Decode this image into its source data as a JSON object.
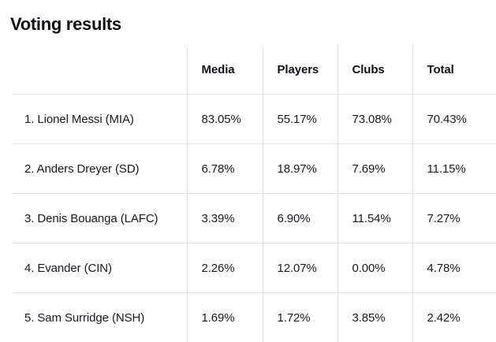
{
  "page_title": "Voting results",
  "table": {
    "columns": {
      "name": "",
      "media": "Media",
      "players": "Players",
      "clubs": "Clubs",
      "total": "Total"
    },
    "rows": [
      {
        "name": "1. Lionel Messi (MIA)",
        "media": "83.05%",
        "players": "55.17%",
        "clubs": "73.08%",
        "total": "70.43%"
      },
      {
        "name": "2. Anders Dreyer (SD)",
        "media": "6.78%",
        "players": "18.97%",
        "clubs": "7.69%",
        "total": "11.15%"
      },
      {
        "name": "3. Denis Bouanga (LAFC)",
        "media": "3.39%",
        "players": "6.90%",
        "clubs": "11.54%",
        "total": "7.27%"
      },
      {
        "name": "4. Evander (CIN)",
        "media": "2.26%",
        "players": "12.07%",
        "clubs": "0.00%",
        "total": "4.78%"
      },
      {
        "name": "5. Sam Surridge (NSH)",
        "media": "1.69%",
        "players": "1.72%",
        "clubs": "3.85%",
        "total": "2.42%"
      }
    ]
  }
}
